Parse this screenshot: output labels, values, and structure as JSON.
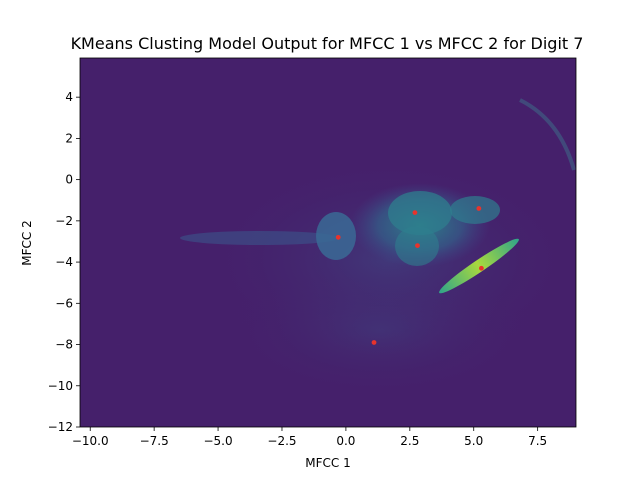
{
  "chart_data": {
    "type": "heatmap",
    "title": "KMeans Clusting Model Output for MFCC 1 vs MFCC 2 for Digit 7",
    "xlabel": "MFCC 1",
    "ylabel": "MFCC 2",
    "xlim": [
      -10.4,
      9.0
    ],
    "ylim": [
      -12.0,
      5.9
    ],
    "xticks": [
      -10.0,
      -7.5,
      -5.0,
      -2.5,
      0.0,
      2.5,
      5.0,
      7.5
    ],
    "xtick_labels": [
      "−10.0",
      "−7.5",
      "−5.0",
      "−2.5",
      "0.0",
      "2.5",
      "5.0",
      "7.5"
    ],
    "yticks": [
      -12,
      -10,
      -8,
      -6,
      -4,
      -2,
      0,
      2,
      4
    ],
    "ytick_labels": [
      "−12",
      "−10",
      "−8",
      "−6",
      "−4",
      "−2",
      "0",
      "2",
      "4"
    ],
    "colormap": "viridis",
    "background_color": "#45206b",
    "cluster_centers": [
      {
        "x": -0.3,
        "y": -2.8
      },
      {
        "x": 2.7,
        "y": -1.6
      },
      {
        "x": 2.8,
        "y": -3.2
      },
      {
        "x": 5.2,
        "y": -1.4
      },
      {
        "x": 5.3,
        "y": -4.3
      },
      {
        "x": 1.1,
        "y": -7.9
      }
    ],
    "center_color": "#e8332c",
    "grid": false
  }
}
